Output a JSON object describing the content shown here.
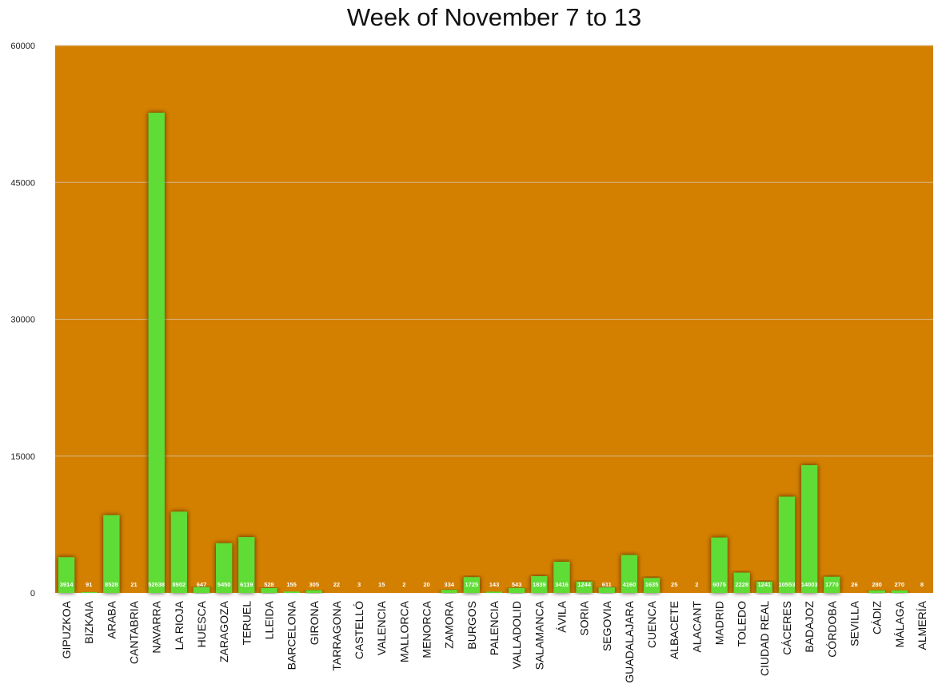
{
  "chart_data": {
    "type": "bar",
    "title": "Week of November 7 to 13",
    "xlabel": "",
    "ylabel": "",
    "ylim": [
      0,
      60000
    ],
    "yticks": [
      0,
      15000,
      30000,
      45000,
      60000
    ],
    "grid": true,
    "legend": "none",
    "colors": {
      "plot_background": "#d37f00",
      "bar": "#5fdc35",
      "bar_shadow": "#2a1400",
      "gridline": "#d6b98a"
    },
    "categories": [
      "GIPUZKOA",
      "BIZKAIA",
      "ARABA",
      "CANTABRIA",
      "NAVARRA",
      "LA RIOJA",
      "HUESCA",
      "ZARAGOZA",
      "TERUEL",
      "LLEIDA",
      "BARCELONA",
      "GIRONA",
      "TARRAGONA",
      "CASTELLÓ",
      "VALENCIA",
      "MALLORCA",
      "MENORCA",
      "ZAMORA",
      "BURGOS",
      "PALENCIA",
      "VALLADOLID",
      "SALAMANCA",
      "ÁVILA",
      "SORIA",
      "SEGOVIA",
      "GUADALAJARA",
      "CUENCA",
      "ALBACETE",
      "ALACANT",
      "MADRID",
      "TOLEDO",
      "CIUDAD REAL",
      "CÁCERES",
      "BADAJOZ",
      "CÓRDOBA",
      "SEVILLA",
      "CÁDIZ",
      "MÁLAGA",
      "ALMERÍA"
    ],
    "values": [
      3914,
      91,
      8528,
      21,
      52638,
      8902,
      647,
      5450,
      6119,
      528,
      155,
      305,
      22,
      3,
      15,
      2,
      20,
      334,
      1725,
      143,
      543,
      1839,
      3416,
      1244,
      611,
      4160,
      1635,
      25,
      2,
      6075,
      2228,
      1241,
      10553,
      14003,
      1770,
      26,
      280,
      270,
      8
    ]
  }
}
